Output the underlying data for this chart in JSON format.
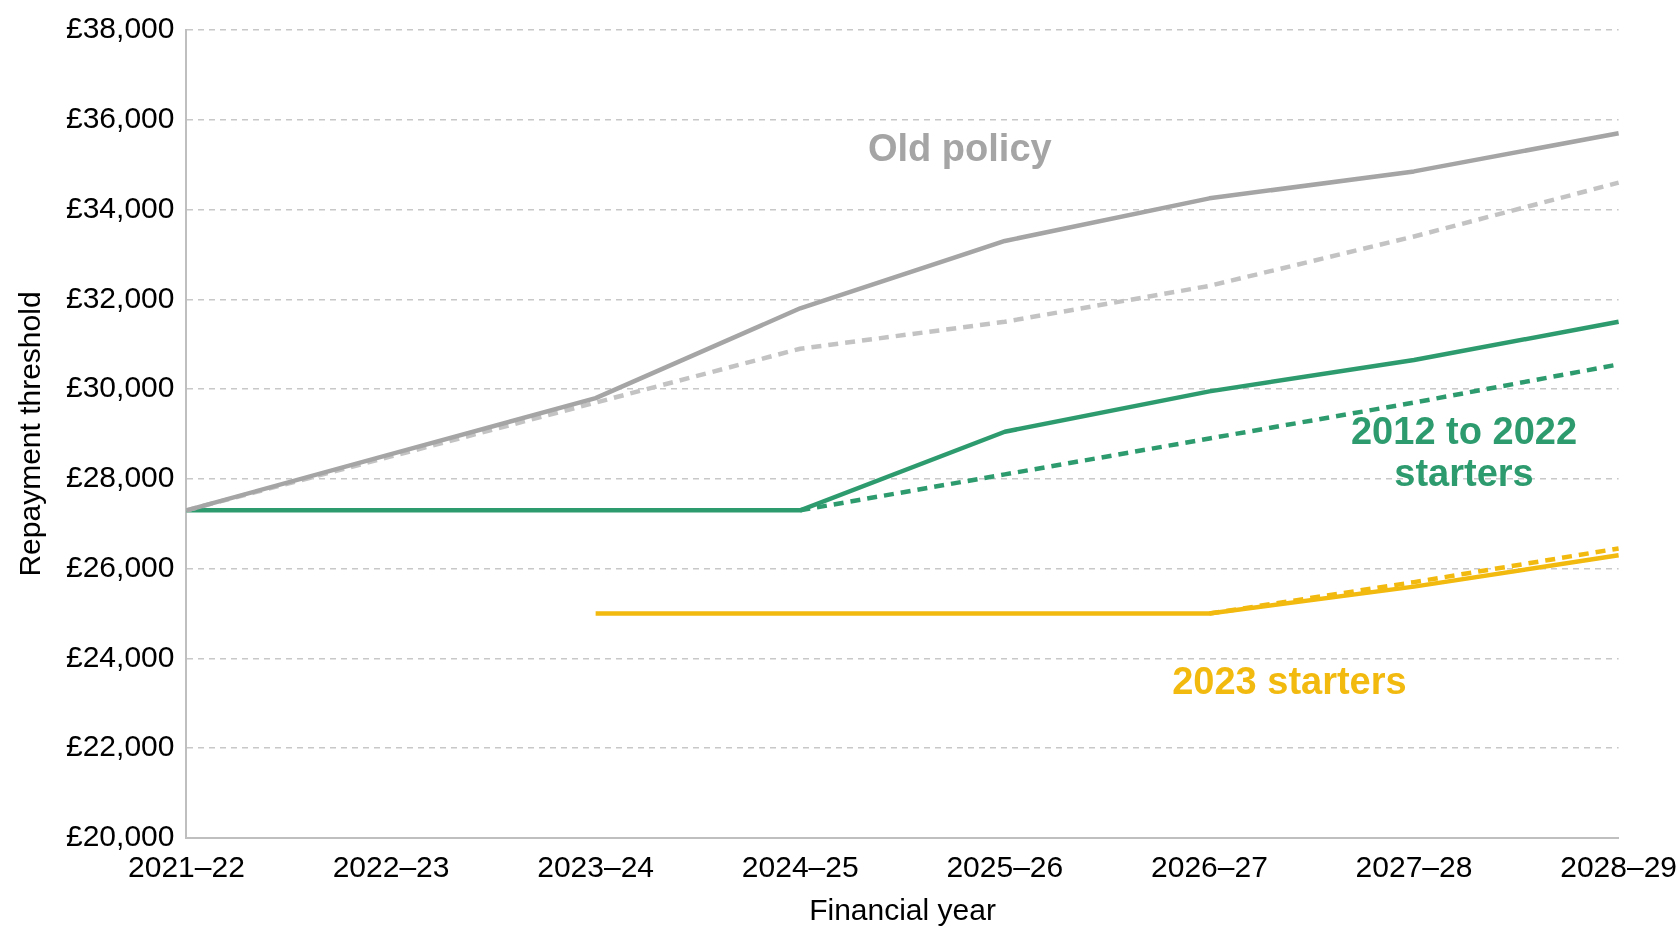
{
  "chart_data": {
    "type": "line",
    "xlabel": "Financial year",
    "ylabel": "Repayment threshold",
    "categories": [
      "2021–22",
      "2022–23",
      "2023–24",
      "2024–25",
      "2025–26",
      "2026–27",
      "2027–28",
      "2028–29"
    ],
    "series": [
      {
        "name": "Old policy",
        "color": "#a5a5a5",
        "line_style": "solid",
        "values": [
          27300,
          28550,
          29800,
          31800,
          33300,
          34250,
          34850,
          35700
        ]
      },
      {
        "color": "#c3c3c3",
        "line_style": "dashed",
        "values": [
          27300,
          28500,
          29700,
          30900,
          31500,
          32300,
          33400,
          34600
        ]
      },
      {
        "name": "2012 to 2022 starters",
        "color": "#2e9b6f",
        "line_style": "solid",
        "values": [
          27300,
          27300,
          27300,
          27300,
          29050,
          29950,
          30650,
          31500
        ]
      },
      {
        "color": "#2e9b6f",
        "line_style": "dashed",
        "values": [
          null,
          null,
          null,
          27300,
          28100,
          28900,
          29700,
          30550
        ]
      },
      {
        "name": "2023 starters",
        "color": "#f2b90f",
        "line_style": "solid",
        "values": [
          null,
          null,
          25000,
          25000,
          25000,
          25000,
          25600,
          26300
        ]
      },
      {
        "color": "#f2b90f",
        "line_style": "dashed",
        "values": [
          null,
          null,
          null,
          null,
          null,
          25000,
          25700,
          26450
        ]
      }
    ],
    "ylim": [
      20000,
      38000
    ],
    "yticks": [
      {
        "value": 20000,
        "label": "£20,000"
      },
      {
        "value": 22000,
        "label": "£22,000"
      },
      {
        "value": 24000,
        "label": "£24,000"
      },
      {
        "value": 26000,
        "label": "£26,000"
      },
      {
        "value": 28000,
        "label": "£28,000"
      },
      {
        "value": 30000,
        "label": "£30,000"
      },
      {
        "value": 32000,
        "label": "£32,000"
      },
      {
        "value": 34000,
        "label": "£34,000"
      },
      {
        "value": 36000,
        "label": "£36,000"
      },
      {
        "value": 38000,
        "label": "£38,000"
      }
    ],
    "grid": "y",
    "legend": false,
    "marker": "none"
  }
}
